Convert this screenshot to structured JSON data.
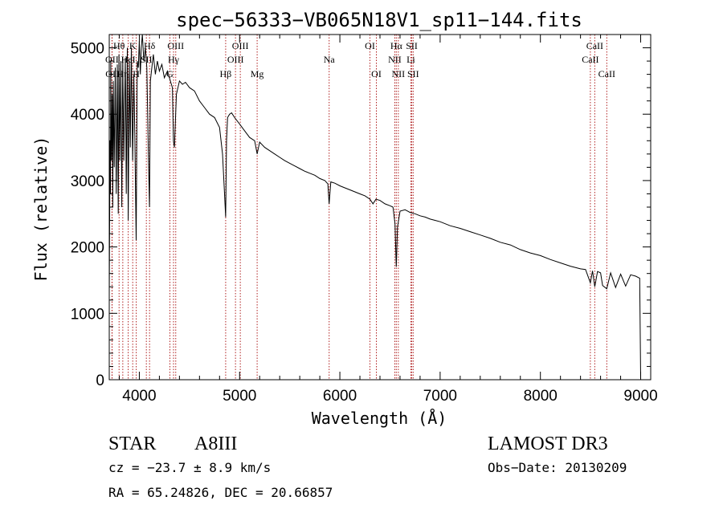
{
  "chart_data": {
    "type": "line",
    "title": "spec−56333−VB065N18V1_sp11−144.fits",
    "xlabel": "Wavelength (Å)",
    "ylabel": "Flux (relative)",
    "xlim": [
      3700,
      9100
    ],
    "ylim": [
      0,
      5200
    ],
    "x_ticks": [
      4000,
      5000,
      6000,
      7000,
      8000,
      9000
    ],
    "x_tick_labels": [
      "4000",
      "5000",
      "6000",
      "7000",
      "8000",
      "9000"
    ],
    "y_ticks": [
      0,
      1000,
      2000,
      3000,
      4000,
      5000
    ],
    "y_tick_labels": [
      "0",
      "1000",
      "2000",
      "3000",
      "4000",
      "5000"
    ],
    "series": [
      {
        "name": "flux",
        "x": [
          3700,
          3708,
          3712,
          3715,
          3722,
          3730,
          3735,
          3740,
          3750,
          3760,
          3770,
          3780,
          3790,
          3797,
          3805,
          3815,
          3825,
          3835,
          3845,
          3860,
          3870,
          3880,
          3889,
          3900,
          3910,
          3920,
          3933,
          3945,
          3955,
          3968,
          3980,
          3990,
          4000,
          4010,
          4020,
          4030,
          4045,
          4060,
          4075,
          4090,
          4101,
          4110,
          4125,
          4140,
          4160,
          4180,
          4200,
          4225,
          4250,
          4280,
          4310,
          4330,
          4340,
          4350,
          4370,
          4400,
          4430,
          4460,
          4500,
          4550,
          4600,
          4650,
          4700,
          4750,
          4800,
          4830,
          4850,
          4861,
          4870,
          4880,
          4900,
          4920,
          4950,
          5000,
          5050,
          5100,
          5150,
          5175,
          5200,
          5250,
          5300,
          5350,
          5400,
          5450,
          5500,
          5550,
          5600,
          5650,
          5700,
          5750,
          5800,
          5850,
          5880,
          5893,
          5910,
          5950,
          6000,
          6050,
          6100,
          6150,
          6200,
          6250,
          6300,
          6330,
          6360,
          6400,
          6450,
          6500,
          6530,
          6550,
          6563,
          6575,
          6600,
          6650,
          6700,
          6750,
          6800,
          6850,
          6900,
          6950,
          7000,
          7100,
          7200,
          7300,
          7400,
          7500,
          7600,
          7700,
          7800,
          7900,
          8000,
          8100,
          8200,
          8300,
          8400,
          8450,
          8498,
          8520,
          8542,
          8570,
          8600,
          8620,
          8662,
          8700,
          8750,
          8800,
          8850,
          8900,
          8950,
          8990,
          9000
        ],
        "y": [
          1300,
          3600,
          2800,
          4800,
          3300,
          4300,
          2600,
          4500,
          3200,
          4700,
          2800,
          4750,
          2500,
          4900,
          3300,
          4800,
          2600,
          4850,
          3300,
          4850,
          2800,
          5000,
          2400,
          4800,
          3500,
          5000,
          3300,
          4600,
          3700,
          2100,
          4800,
          4700,
          5100,
          4600,
          5000,
          5200,
          4800,
          5000,
          4700,
          3400,
          2600,
          4500,
          4700,
          4900,
          4600,
          4800,
          4650,
          4750,
          4550,
          4650,
          4500,
          4400,
          3600,
          3500,
          4300,
          4500,
          4450,
          4480,
          4400,
          4350,
          4200,
          4100,
          4000,
          3950,
          3800,
          3400,
          2800,
          2450,
          3600,
          3950,
          4000,
          4020,
          3950,
          3850,
          3750,
          3650,
          3600,
          3400,
          3580,
          3500,
          3450,
          3400,
          3350,
          3300,
          3260,
          3220,
          3180,
          3140,
          3110,
          3080,
          3030,
          3000,
          2950,
          2650,
          2980,
          2960,
          2920,
          2890,
          2860,
          2830,
          2800,
          2770,
          2720,
          2650,
          2720,
          2700,
          2650,
          2620,
          2600,
          2350,
          1700,
          2300,
          2540,
          2560,
          2520,
          2500,
          2470,
          2450,
          2420,
          2400,
          2380,
          2320,
          2280,
          2230,
          2180,
          2130,
          2070,
          2030,
          1960,
          1910,
          1870,
          1810,
          1760,
          1710,
          1670,
          1660,
          1460,
          1640,
          1400,
          1630,
          1610,
          1420,
          1370,
          1610,
          1390,
          1590,
          1410,
          1580,
          1560,
          1530,
          20
        ]
      }
    ],
    "spectral_lines": [
      {
        "label": "Hθ",
        "x": 3798,
        "row": 1
      },
      {
        "label": "K",
        "x": 3934,
        "row": 1
      },
      {
        "label": "Hδ",
        "x": 4102,
        "row": 1
      },
      {
        "label": "OIII",
        "x": 4363,
        "row": 1
      },
      {
        "label": "OIII",
        "x": 5007,
        "row": 1
      },
      {
        "label": "OI",
        "x": 6300,
        "row": 1
      },
      {
        "label": "Hα",
        "x": 6563,
        "row": 1
      },
      {
        "label": "SII",
        "x": 6717,
        "row": 1
      },
      {
        "label": "CaII",
        "x": 8542,
        "row": 1
      },
      {
        "label": "OII",
        "x": 3727,
        "row": 2
      },
      {
        "label": "HeI",
        "x": 3889,
        "row": 2
      },
      {
        "label": "SII",
        "x": 4070,
        "row": 2
      },
      {
        "label": "Hγ",
        "x": 4341,
        "row": 2
      },
      {
        "label": "OIII",
        "x": 4959,
        "row": 2
      },
      {
        "label": "Na",
        "x": 5893,
        "row": 2
      },
      {
        "label": "NII",
        "x": 6548,
        "row": 2
      },
      {
        "label": "Li",
        "x": 6708,
        "row": 2
      },
      {
        "label": "CaII",
        "x": 8498,
        "row": 2
      },
      {
        "label": "OII",
        "x": 3729,
        "row": 3
      },
      {
        "label": "Hη",
        "x": 3835,
        "row": 3
      },
      {
        "label": "H",
        "x": 3969,
        "row": 3
      },
      {
        "label": "G",
        "x": 4305,
        "row": 3
      },
      {
        "label": "Hβ",
        "x": 4861,
        "row": 3
      },
      {
        "label": "Mg",
        "x": 5175,
        "row": 3
      },
      {
        "label": "OI",
        "x": 6364,
        "row": 3
      },
      {
        "label": "NII",
        "x": 6583,
        "row": 3
      },
      {
        "label": "SII",
        "x": 6731,
        "row": 3
      },
      {
        "label": "CaII",
        "x": 8662,
        "row": 3
      }
    ]
  },
  "info": {
    "object_type": "STAR",
    "subclass": "A8III",
    "survey": "LAMOST DR3",
    "cz": "cz = −23.7 ± 8.9 km/s",
    "obs_date": "Obs−Date: 20130209",
    "radec": "RA =  65.24826, DEC =  20.66857"
  }
}
